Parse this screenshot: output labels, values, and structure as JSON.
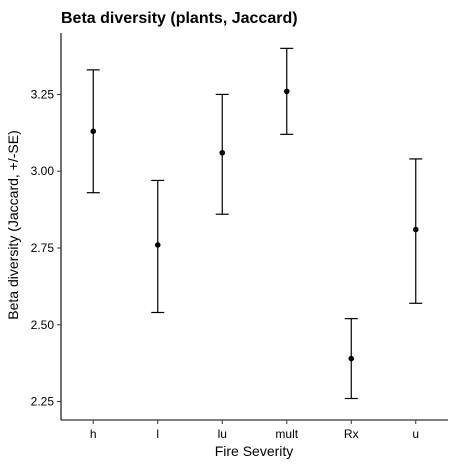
{
  "chart_data": {
    "type": "scatter",
    "title": "Beta diversity (plants, Jaccard)",
    "xlabel": "Fire Severity",
    "ylabel": "Beta diversity (Jaccard, +/-SE)",
    "categories": [
      "h",
      "l",
      "lu",
      "mult",
      "Rx",
      "u"
    ],
    "series": [
      {
        "values": [
          3.13,
          2.76,
          3.06,
          3.26,
          2.39,
          2.81
        ],
        "error_lower": [
          2.93,
          2.54,
          2.86,
          3.12,
          2.26,
          2.57
        ],
        "error_upper": [
          3.33,
          2.97,
          3.25,
          3.4,
          2.52,
          3.04
        ],
        "color": "#000000"
      }
    ],
    "ylim": [
      2.19,
      3.45
    ],
    "yticks": [
      2.25,
      2.5,
      2.75,
      3.0,
      3.25
    ],
    "ytick_labels": [
      "2.25",
      "2.50",
      "2.75",
      "3.00",
      "3.25"
    ],
    "grid": false,
    "legend": "none"
  }
}
